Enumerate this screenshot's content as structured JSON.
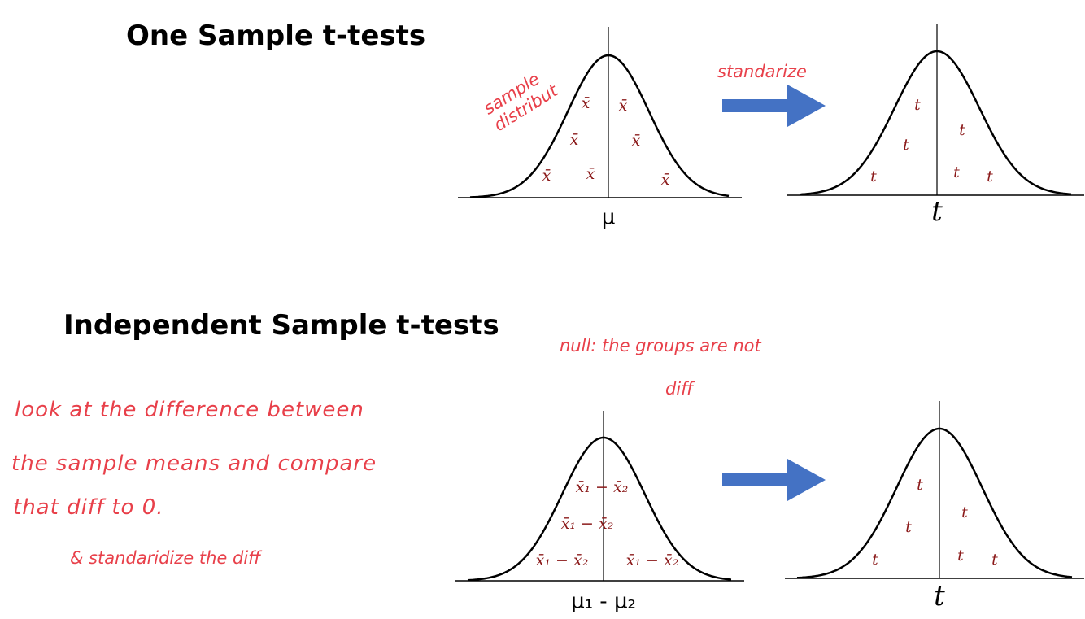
{
  "sections": [
    {
      "title": "One Sample t-tests",
      "left_curve": {
        "labels": [
          "x̄",
          "x̄",
          "x̄",
          "x̄",
          "x̄",
          "x̄",
          "x̄"
        ],
        "axis_label": "μ"
      },
      "right_curve": {
        "labels": [
          "t",
          "t",
          "t",
          "t",
          "t",
          "t"
        ],
        "axis_label": "t"
      },
      "notes": {
        "curve_note": [
          "sample",
          "distribut"
        ],
        "arrow_note": "standarize"
      }
    },
    {
      "title": "Independent Sample t-tests",
      "left_curve": {
        "labels": [
          "x̄₁ − x̄₂",
          "x̄₁ − x̄₂",
          "x̄₁ − x̄₂",
          "x̄₁ − x̄₂"
        ],
        "axis_label": "μ₁ - μ₂"
      },
      "right_curve": {
        "labels": [
          "t",
          "t",
          "t",
          "t",
          "t",
          "t"
        ],
        "axis_label": "t"
      },
      "notes": {
        "null_note": [
          "null: the groups are not",
          "diff"
        ],
        "explanation": [
          "look at the difference between",
          "the sample means and compare",
          "that diff to 0."
        ],
        "standardize_note": "& standaridize the diff"
      }
    }
  ]
}
